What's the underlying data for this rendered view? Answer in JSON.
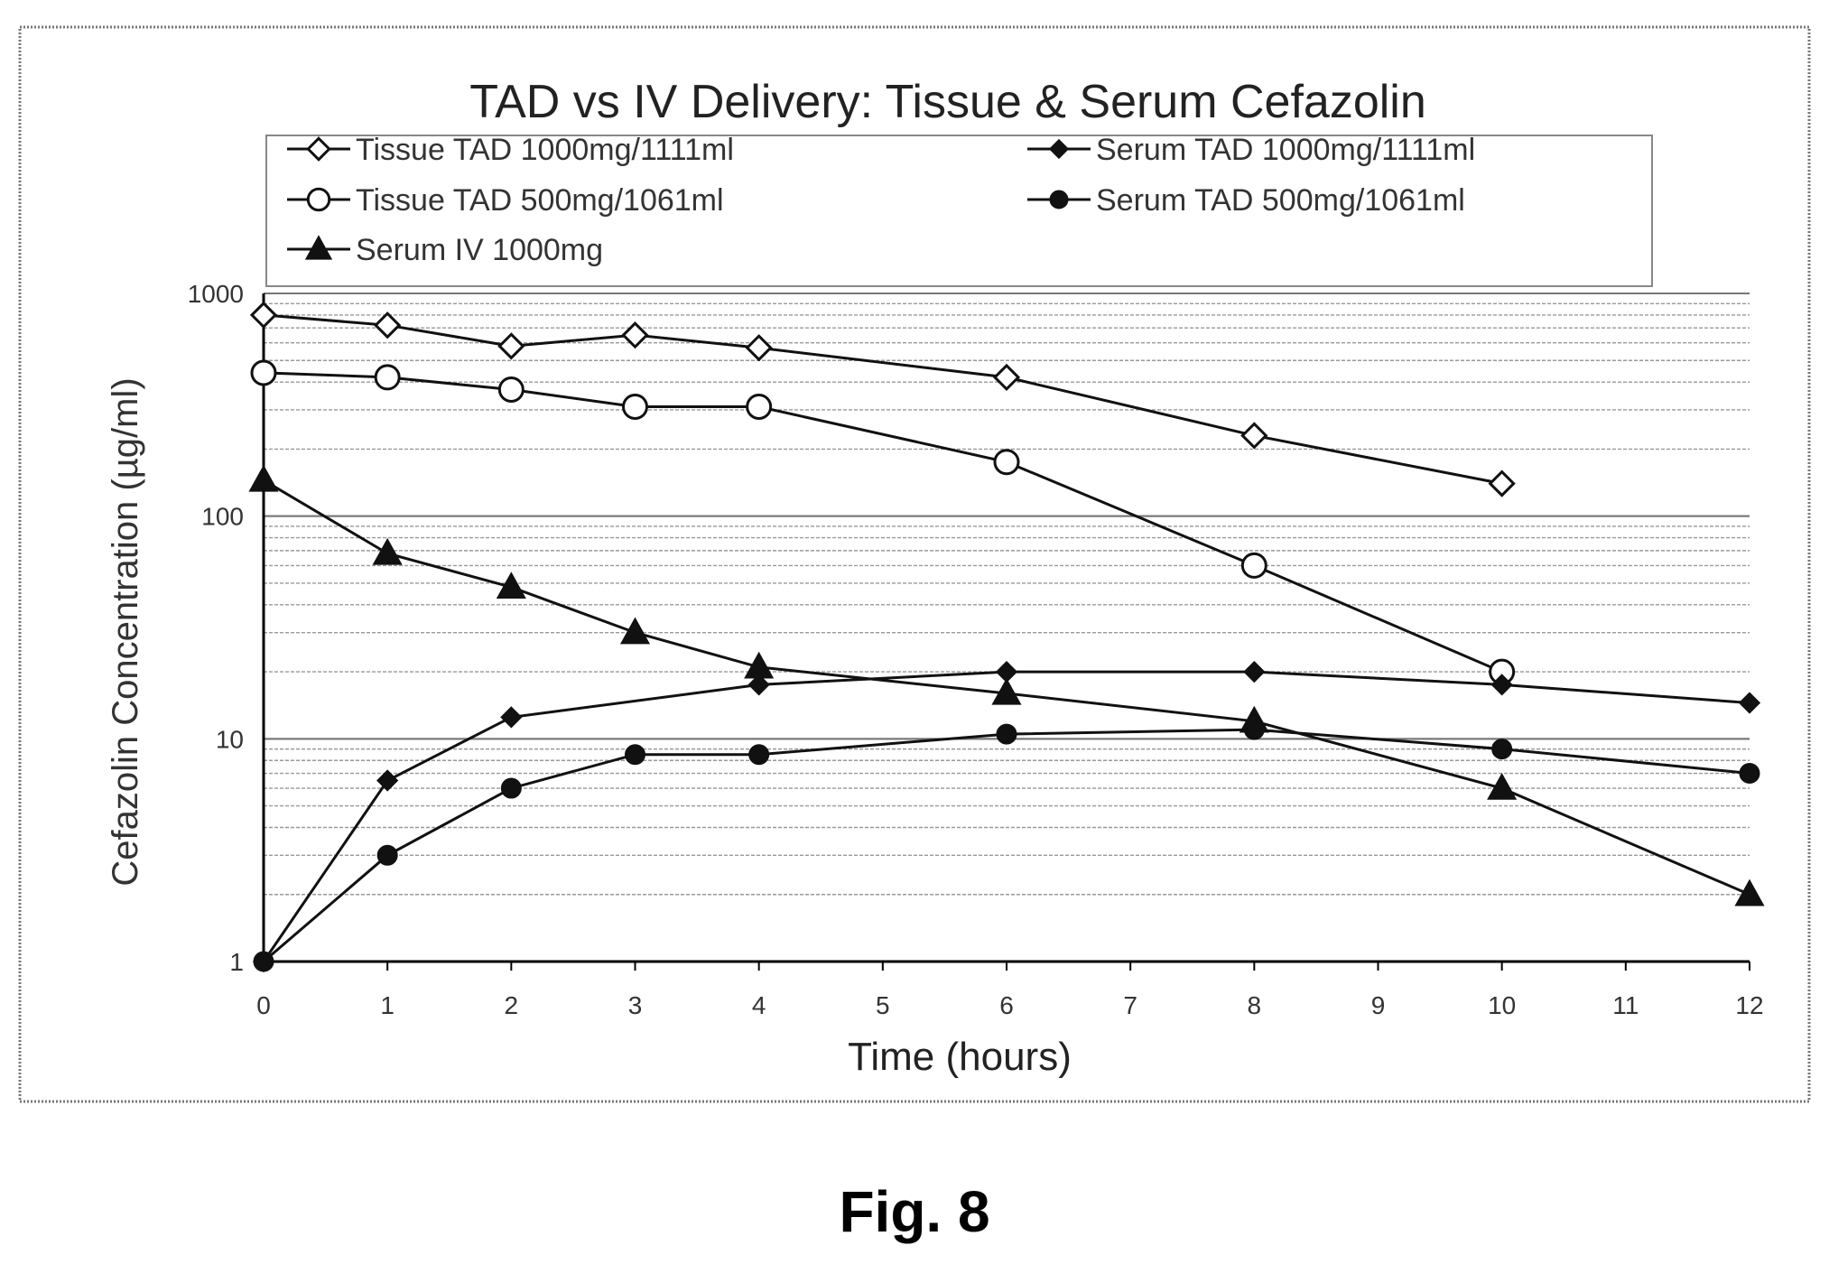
{
  "figure_label": "Fig. 8",
  "chart_data": {
    "type": "line",
    "title": "TAD vs IV Delivery: Tissue & Serum Cefazolin",
    "xlabel": "Time (hours)",
    "ylabel": "Cefazolin Concentration (µg/ml)",
    "xlim": [
      0,
      12
    ],
    "ylim": [
      1,
      1000
    ],
    "yscale": "log",
    "x_ticks": [
      0,
      1,
      2,
      3,
      4,
      5,
      6,
      7,
      8,
      9,
      10,
      11,
      12
    ],
    "x_tick_labels": [
      "0",
      "1",
      "2",
      "3",
      "4",
      "5",
      "6",
      "7",
      "8",
      "9",
      "10",
      "11",
      "12"
    ],
    "y_ticks": [
      1,
      10,
      100,
      1000
    ],
    "y_tick_labels": [
      "1",
      "10",
      "100",
      "1000"
    ],
    "grid": true,
    "legend_position": "top",
    "series": [
      {
        "name": "Tissue TAD 1000mg/1111ml",
        "marker": "diamond-open",
        "x": [
          0,
          1,
          2,
          3,
          4,
          6,
          8,
          10
        ],
        "y": [
          800,
          720,
          580,
          650,
          570,
          420,
          230,
          140
        ]
      },
      {
        "name": "Tissue TAD 500mg/1061ml",
        "marker": "circle-open",
        "x": [
          0,
          1,
          2,
          3,
          4,
          6,
          8,
          10
        ],
        "y": [
          440,
          420,
          370,
          310,
          310,
          175,
          60,
          20
        ]
      },
      {
        "name": "Serum IV 1000mg",
        "marker": "triangle-filled",
        "x": [
          0,
          1,
          2,
          3,
          4,
          6,
          8,
          10,
          12
        ],
        "y": [
          145,
          68,
          48,
          30,
          21,
          16,
          12,
          6,
          2
        ]
      },
      {
        "name": "Serum TAD 1000mg/1111ml",
        "marker": "diamond-filled",
        "x": [
          0,
          1,
          2,
          4,
          6,
          8,
          10,
          12
        ],
        "y": [
          1,
          6.5,
          12.5,
          17.5,
          20,
          20,
          17.5,
          14.5
        ]
      },
      {
        "name": "Serum TAD 500mg/1061ml",
        "marker": "circle-filled",
        "x": [
          0,
          1,
          2,
          3,
          4,
          6,
          8,
          10,
          12
        ],
        "y": [
          1,
          3,
          6,
          8.5,
          8.5,
          10.5,
          11,
          9,
          7
        ]
      }
    ]
  }
}
